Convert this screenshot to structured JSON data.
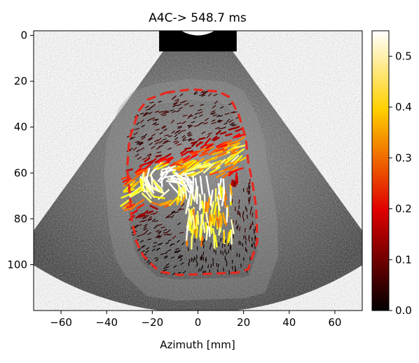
{
  "chart_data": {
    "type": "heatmap",
    "title": "A4C-> 548.7 ms",
    "xlabel": "Azimuth [mm]",
    "ylabel": "",
    "xlim": [
      -72,
      72
    ],
    "ylim": [
      120,
      -2
    ],
    "x_ticks": [
      -60,
      -40,
      -20,
      0,
      20,
      40,
      60
    ],
    "y_ticks": [
      0,
      20,
      40,
      60,
      80,
      100
    ],
    "grid": false,
    "background": "grayscale ultrasound sector (B-mode)",
    "overlay": "velocity vector field colored by magnitude",
    "colorbar": {
      "colormap": "hot",
      "range": [
        0.0,
        0.55
      ],
      "ticks": [
        0.0,
        0.1,
        0.2,
        0.3,
        0.4,
        0.5
      ],
      "tick_labels": [
        "0.0",
        "0.1",
        "0.2",
        "0.3",
        "0.4",
        "0.5"
      ]
    },
    "sector": {
      "apex": [
        0,
        -14
      ],
      "inner_radius": 14,
      "outer_radius": 135,
      "half_angle_deg": 36,
      "top_depth": 7
    },
    "roi_outline": {
      "color": "#e8281e",
      "points": [
        [
          -14,
          25
        ],
        [
          -3,
          23.5
        ],
        [
          9,
          24.5
        ],
        [
          14,
          27
        ],
        [
          18,
          35
        ],
        [
          21,
          45
        ],
        [
          22,
          55
        ],
        [
          24,
          65
        ],
        [
          25.5,
          75
        ],
        [
          26,
          90
        ],
        [
          22,
          102
        ],
        [
          17,
          103.5
        ],
        [
          5,
          104
        ],
        [
          -8,
          104.5
        ],
        [
          -17,
          103
        ],
        [
          -24,
          96
        ],
        [
          -27,
          90
        ],
        [
          -29,
          80
        ],
        [
          -30,
          68
        ],
        [
          -31,
          58
        ],
        [
          -30,
          45
        ],
        [
          -26,
          33
        ],
        [
          -22,
          28
        ],
        [
          -14,
          25
        ]
      ]
    }
  }
}
